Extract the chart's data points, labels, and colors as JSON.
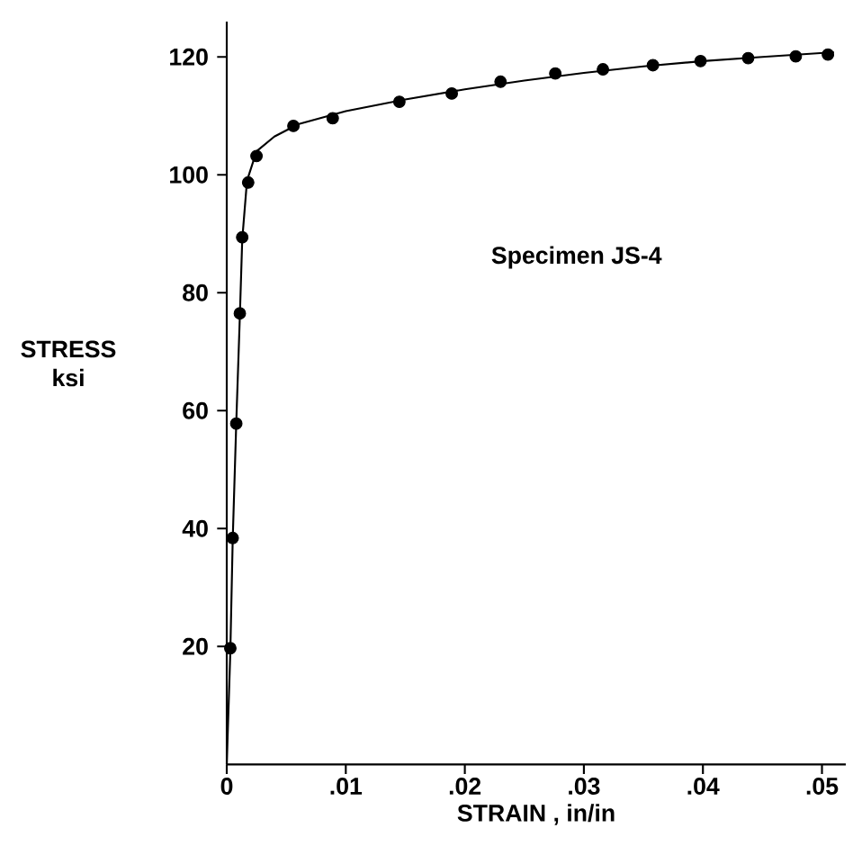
{
  "chart_data": {
    "type": "scatter",
    "xlabel": "STRAIN , in/in",
    "ylabel": "STRESS ksi",
    "annotations": [
      "Specimen JS-4"
    ],
    "xlim": [
      0,
      0.052
    ],
    "ylim": [
      0,
      126
    ],
    "xticks": [
      {
        "value": 0,
        "label": "0"
      },
      {
        "value": 0.01,
        "label": ".01"
      },
      {
        "value": 0.02,
        "label": ".02"
      },
      {
        "value": 0.03,
        "label": ".03"
      },
      {
        "value": 0.04,
        "label": ".04"
      },
      {
        "value": 0.05,
        "label": ".05"
      }
    ],
    "yticks": [
      20,
      40,
      60,
      80,
      100,
      120
    ],
    "grid": false,
    "series": [
      {
        "type": "scatter",
        "color": "#000000",
        "marker": "circle",
        "x": [
          0.0003,
          0.0005,
          0.0008,
          0.0011,
          0.0013,
          0.0018,
          0.0025,
          0.0056,
          0.0089,
          0.0145,
          0.0189,
          0.023,
          0.0276,
          0.0316,
          0.0358,
          0.0398,
          0.0438,
          0.0478,
          0.0505
        ],
        "values": [
          19.7,
          38.4,
          57.8,
          76.5,
          89.4,
          98.7,
          103.2,
          108.3,
          109.6,
          112.4,
          113.8,
          115.8,
          117.2,
          117.9,
          118.6,
          119.3,
          119.8,
          120.1,
          120.4
        ]
      },
      {
        "type": "line",
        "color": "#000000",
        "marker": "none",
        "line_style": "solid",
        "x": [
          0,
          0.0003,
          0.0005,
          0.0008,
          0.0011,
          0.0013,
          0.0017,
          0.0025,
          0.004,
          0.006,
          0.01,
          0.015,
          0.02,
          0.025,
          0.03,
          0.035,
          0.04,
          0.045,
          0.051
        ],
        "values": [
          0,
          19,
          38,
          58,
          76,
          89,
          99,
          104,
          106.5,
          108.6,
          110.8,
          112.8,
          114.5,
          116,
          117.3,
          118.4,
          119.3,
          120,
          120.8
        ]
      }
    ]
  }
}
